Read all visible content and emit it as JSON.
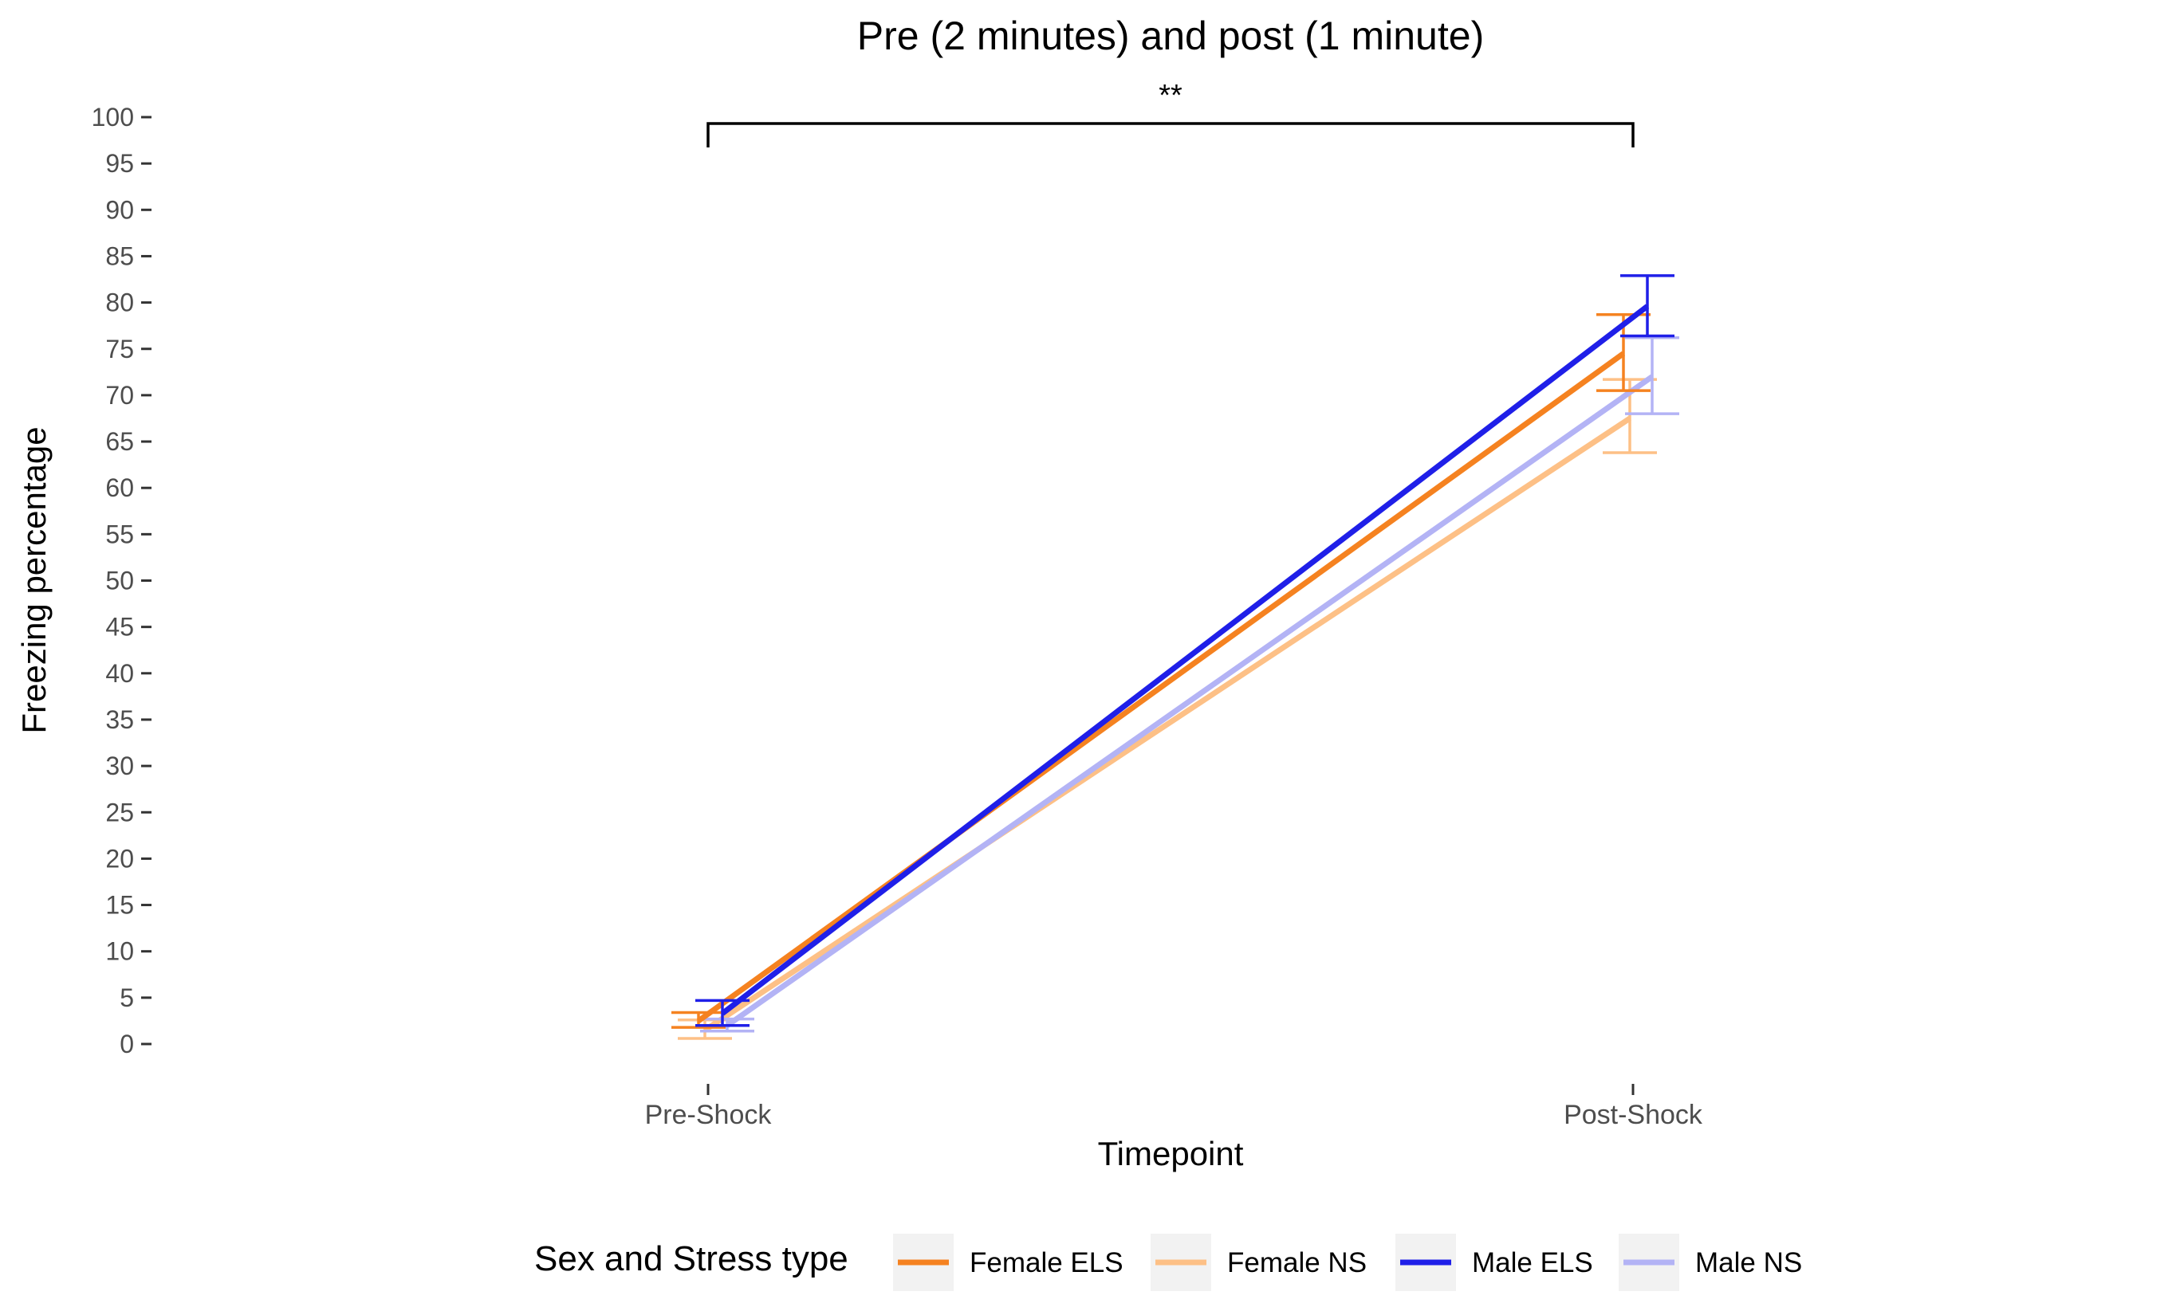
{
  "chart_data": {
    "type": "line",
    "title": "Pre (2 minutes) and post (1 minute)",
    "xlabel": "Timepoint",
    "ylabel": "Freezing percentage",
    "categories": [
      "Pre-Shock",
      "Post-Shock"
    ],
    "ylim": [
      0,
      100
    ],
    "yticks": [
      0,
      5,
      10,
      15,
      20,
      25,
      30,
      35,
      40,
      45,
      50,
      55,
      60,
      65,
      70,
      75,
      80,
      85,
      90,
      95,
      100
    ],
    "grid": false,
    "legend": {
      "title": "Sex and Stress type",
      "position": "bottom"
    },
    "series": [
      {
        "name": "Female ELS",
        "color": "#f58220",
        "values": [
          2.5,
          74.5
        ],
        "err_low": [
          1.8,
          70.5
        ],
        "err_high": [
          3.4,
          78.7
        ]
      },
      {
        "name": "Female NS",
        "color": "#fdc086",
        "values": [
          1.5,
          67.5
        ],
        "err_low": [
          0.6,
          63.8
        ],
        "err_high": [
          2.6,
          71.7
        ]
      },
      {
        "name": "Male ELS",
        "color": "#1f1fe8",
        "values": [
          3.3,
          79.6
        ],
        "err_low": [
          2.0,
          76.4
        ],
        "err_high": [
          4.7,
          82.9
        ]
      },
      {
        "name": "Male NS",
        "color": "#b3b3f5",
        "values": [
          2.0,
          72.0
        ],
        "err_low": [
          1.4,
          68.0
        ],
        "err_high": [
          2.7,
          76.2
        ]
      }
    ],
    "annotations": [
      {
        "text": "**",
        "between": [
          "Pre-Shock",
          "Post-Shock"
        ]
      }
    ]
  }
}
